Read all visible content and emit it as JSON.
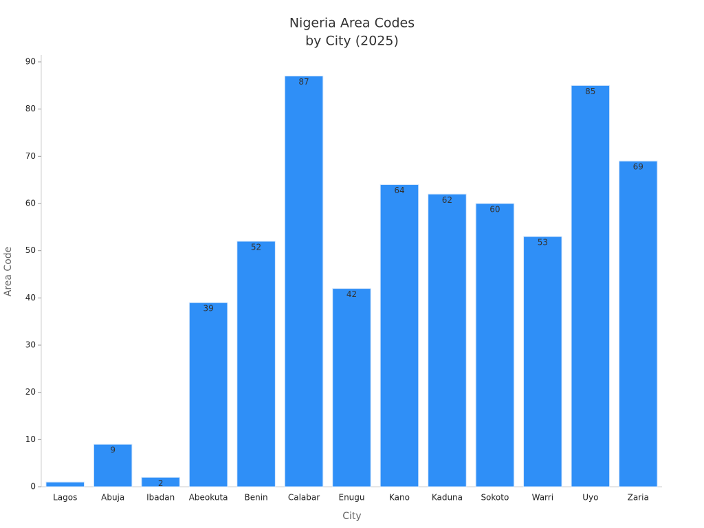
{
  "chart_data": {
    "type": "bar",
    "title": [
      "Nigeria Area Codes",
      "by City (2025)"
    ],
    "x_label": "City",
    "y_label": "Area Code",
    "categories": [
      "Lagos",
      "Abuja",
      "Ibadan",
      "Abeokuta",
      "Benin",
      "Calabar",
      "Enugu",
      "Kano",
      "Kaduna",
      "Sokoto",
      "Warri",
      "Uyo",
      "Zaria"
    ],
    "values": [
      1,
      9,
      2,
      39,
      52,
      87,
      42,
      64,
      62,
      60,
      53,
      85,
      69
    ],
    "color": "#2f8ff7",
    "ylim": [
      0,
      90
    ],
    "yticks": [
      0,
      10,
      20,
      30,
      40,
      50,
      60,
      70,
      80,
      90
    ],
    "grid": false
  }
}
